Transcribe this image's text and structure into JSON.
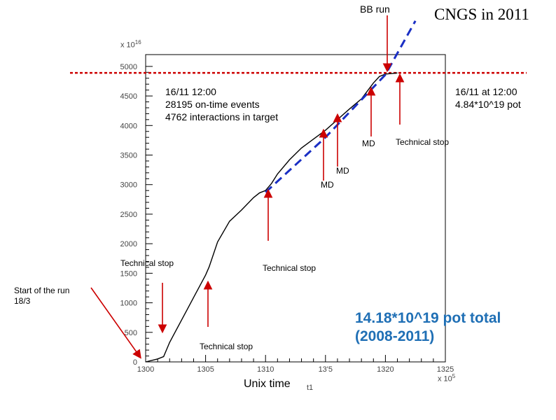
{
  "header": {
    "bb_run": "BB run",
    "title": "CNGS in 2011"
  },
  "annotations": {
    "info_lines": [
      "16/11 12:00",
      "28195 on-time events",
      "4762 interactions in target"
    ],
    "pot_lines": [
      "16/11 at 12:00",
      "4.84*10^19 pot"
    ],
    "total_lines": [
      "14.18*10^19 pot total",
      "(2008-2011)"
    ],
    "start_lines": [
      "Start of the run",
      "18/3"
    ],
    "md_1": "MD",
    "md_2": "MD",
    "md_3": "MD",
    "tech_stop_1": "Technical stop",
    "tech_stop_2": "Technical stop",
    "tech_stop_3": "Technical stop",
    "tech_stop_4": "Technical stop"
  },
  "colors": {
    "curve": "#000000",
    "projection": "#1a2fc4",
    "target_line": "#cc0000",
    "arrows": "#cc0000",
    "total_text": "#1f6fb5"
  },
  "chart_data": {
    "type": "line",
    "y_multiplier": "x 10^16",
    "x_multiplier": "x 10^5",
    "xlabel": "Unix time",
    "xlabel_suffix": "t1",
    "xlim": [
      1300,
      1325
    ],
    "ylim": [
      0,
      5200
    ],
    "x_ticks": [
      1300,
      1305,
      1310,
      1315,
      1320,
      1325
    ],
    "x_tick_labels": [
      "1300",
      "1305",
      "1310",
      "13'5",
      "1320",
      "1325"
    ],
    "y_ticks": [
      0,
      500,
      1000,
      1500,
      2000,
      2500,
      3000,
      3500,
      4000,
      4500,
      5000
    ],
    "y_tick_labels": [
      "0",
      "500",
      "1000",
      "1500",
      "2000",
      "2500",
      "3000",
      "3500",
      "4000",
      "4500",
      "5000"
    ],
    "series": [
      {
        "x": [
          1300,
          1301,
          1301.5,
          1302,
          1302.5,
          1303,
          1303.5,
          1304,
          1304.5,
          1305,
          1305.3,
          1306,
          1307,
          1308,
          1309,
          1309.5,
          1310,
          1310.5,
          1311,
          1312,
          1313,
          1314,
          1315,
          1316,
          1317,
          1318,
          1319,
          1319.5,
          1320,
          1320.5,
          1321
        ],
        "y": [
          0,
          50,
          90,
          330,
          520,
          710,
          900,
          1090,
          1280,
          1470,
          1610,
          2030,
          2380,
          2570,
          2780,
          2860,
          2900,
          3020,
          3180,
          3420,
          3620,
          3770,
          3920,
          4100,
          4280,
          4450,
          4720,
          4830,
          4870,
          4880,
          4890
        ]
      },
      {
        "style": "dashed",
        "x": [
          1310,
          1315,
          1320,
          1322.5
        ],
        "y": [
          2870,
          3800,
          4860,
          5770
        ]
      }
    ],
    "reference_line_y": 4890
  }
}
